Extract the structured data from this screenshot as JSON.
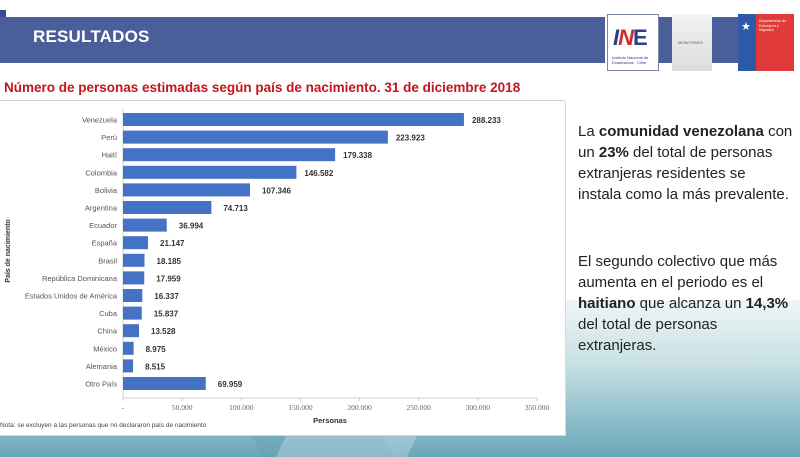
{
  "header": {
    "title": "RESULTADOS",
    "logos": {
      "ine": {
        "mark_i": "I",
        "mark_n": "N",
        "mark_e": "E",
        "caption": "Instituto Nacional de Estadísticas · Chile"
      },
      "middle": {
        "caption": "MONITOREO"
      },
      "gov": {
        "caption": "Departamento de Extranjería y Migración"
      }
    }
  },
  "subtitle": "Número de personas estimadas según país de nacimiento. 31 de diciembre 2018",
  "footnote": "Nota: se excluyen a las personas que no declararon país de nacimiento",
  "side_text": {
    "p1": {
      "pre": "La ",
      "b1": "comunidad venezolana",
      "mid1": " con un ",
      "b2": "23%",
      "post": " del total de personas extranjeras residentes se instala como la más prevalente."
    },
    "p2": {
      "pre": "El segundo colectivo que más aumenta en el periodo es el ",
      "b1": "haitiano",
      "mid1": " que alcanza un ",
      "b2": "14,3%",
      "post": " del total de personas extranjeras."
    }
  },
  "colors": {
    "bar": "#4472c4",
    "header": "#4a5f9a",
    "subtitle": "#c0161c"
  },
  "chart_data": {
    "type": "bar",
    "orientation": "horizontal",
    "title": "Número de personas estimadas según país de nacimiento. 31 de diciembre 2018",
    "xlabel": "Personas",
    "ylabel": "País de nacimiento",
    "categories": [
      "Venezuela",
      "Perú",
      "Haití",
      "Colombia",
      "Bolivia",
      "Argentina",
      "Ecuador",
      "España",
      "Brasil",
      "República Dominicana",
      "Estados Unidos de América",
      "Cuba",
      "China",
      "México",
      "Alemania",
      "Otro País"
    ],
    "values": [
      288233,
      223923,
      179338,
      146582,
      107346,
      74713,
      36994,
      21147,
      18185,
      17959,
      16337,
      15837,
      13528,
      8975,
      8515,
      69959
    ],
    "value_labels": [
      "288.233",
      "223.923",
      "179.338",
      "146.582",
      "107.346",
      "74.713",
      "36.994",
      "21.147",
      "18.185",
      "17.959",
      "16.337",
      "15.837",
      "13.528",
      "8.975",
      "8.515",
      "69.959"
    ],
    "xlim": [
      0,
      350000
    ],
    "xticks": [
      0,
      50000,
      100000,
      150000,
      200000,
      250000,
      300000,
      350000
    ],
    "xtick_labels": [
      "-",
      "50.000",
      "100.000",
      "150.000",
      "200.000",
      "250.000",
      "300.000",
      "350.000"
    ],
    "grid": false,
    "legend": "none"
  }
}
